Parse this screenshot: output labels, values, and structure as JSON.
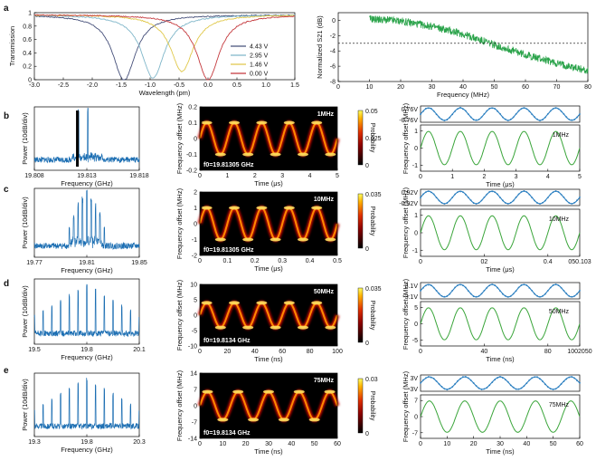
{
  "colors": {
    "transmission": [
      "#46507a",
      "#7fb6c9",
      "#e0c84a",
      "#c4383c"
    ],
    "s21": "#2aa34a",
    "spectrum": "#1d6fb3",
    "drive": "#2b7fc0",
    "freq_offset": "#3aa53a",
    "marker": "#000000"
  },
  "panels": {
    "a": "a",
    "b": "b",
    "c": "c",
    "d": "d",
    "e": "e"
  },
  "chart_data": [
    {
      "id": "a-transmission",
      "type": "line",
      "xlabel": "Wavelength (pm)",
      "ylabel": "Transmission",
      "xlim": [
        -3.0,
        1.5
      ],
      "ylim": [
        0,
        1
      ],
      "xticks": [
        "-3.0",
        "-2.5",
        "-2.0",
        "-1.5",
        "-1.0",
        "-0.5",
        "0.0",
        "0.5",
        "1.0",
        "1.5"
      ],
      "yticks": [
        "0",
        "0.2",
        "0.4",
        "0.6",
        "0.8",
        "1"
      ],
      "legend_position": "lower-right",
      "series": [
        {
          "name": "4.43 V",
          "center": -1.45,
          "width": 0.3,
          "min": 0.02
        },
        {
          "name": "2.95 V",
          "center": -0.95,
          "width": 0.3,
          "min": 0.05
        },
        {
          "name": "1.46 V",
          "center": -0.45,
          "width": 0.3,
          "min": 0.15
        },
        {
          "name": "0.00 V",
          "center": 0.0,
          "width": 0.3,
          "min": 0.03
        }
      ]
    },
    {
      "id": "a-s21",
      "type": "line",
      "xlabel": "Frequency (MHz)",
      "ylabel": "Normalized S21 (dB)",
      "xlim": [
        0,
        80
      ],
      "ylim": [
        -8,
        1
      ],
      "xticks": [
        "0",
        "10",
        "20",
        "30",
        "40",
        "50",
        "60",
        "70",
        "80"
      ],
      "xtick_labels": [
        "0",
        "10",
        "20",
        "30",
        "40",
        "50",
        "60",
        "70",
        "80"
      ],
      "yticks": [
        "0",
        "-2",
        "-4",
        "-6",
        "-8"
      ],
      "reference_line_db": -3,
      "x": [
        10,
        20,
        30,
        40,
        50,
        60,
        70,
        80
      ],
      "values": [
        0.2,
        -0.1,
        -0.8,
        -1.8,
        -3.2,
        -4.5,
        -5.6,
        -6.6
      ]
    },
    {
      "id": "b-spectrum",
      "type": "line",
      "xlabel": "Frequency (GHz)",
      "ylabel": "Power (10dB/div)",
      "xlim": [
        19.808,
        19.818
      ],
      "xticks": [
        "19.808",
        "19.813",
        "19.818"
      ],
      "peaks": [
        19.8122,
        19.8131
      ]
    },
    {
      "id": "b-heatmap",
      "type": "heatmap",
      "xlabel": "Time (μs)",
      "ylabel": "Frequency offset (MHz)",
      "xlim": [
        0,
        5
      ],
      "ylim": [
        -0.2,
        0.2
      ],
      "xticks": [
        "0",
        "1",
        "2",
        "3",
        "4",
        "5"
      ],
      "yticks": [
        "0.2",
        "0.1",
        "0",
        "-0.1",
        "-0.2"
      ],
      "colorbar_label": "Probability",
      "colorbar_ticks": [
        "0.05",
        "0.025",
        "0"
      ],
      "tag": "1MHz",
      "f0": "f0=19.81305 GHz",
      "cycles": 5,
      "amplitude": 0.1
    },
    {
      "id": "b-trace",
      "type": "line",
      "xlabel": "Time (μs)",
      "ylabel": "Frequency offset (MHz)",
      "xlim": [
        0,
        5
      ],
      "xticks": [
        "0",
        "1",
        "2",
        "3",
        "4",
        "5"
      ],
      "yticks": [
        "1",
        "0",
        "-1"
      ],
      "drive_labels": [
        "0.76V",
        "-0.76V"
      ],
      "tag": "1MHz",
      "cycles": 5
    },
    {
      "id": "c-spectrum",
      "type": "line",
      "xlabel": "Frequency (GHz)",
      "ylabel": "Power (10dB/div)",
      "xlim": [
        19.77,
        19.85
      ],
      "xticks": [
        "19.77",
        "19.81",
        "19.85"
      ],
      "peaks": [
        19.81
      ]
    },
    {
      "id": "c-heatmap",
      "type": "heatmap",
      "xlabel": "Time (μs)",
      "ylabel": "Frequency offset (MHz)",
      "xlim": [
        0,
        0.5
      ],
      "ylim": [
        -2,
        2
      ],
      "xticks": [
        "0",
        "0.1",
        "0.2",
        "0.3",
        "0.4",
        "0.5"
      ],
      "yticks": [
        "2",
        "1",
        "0",
        "-1",
        "-2"
      ],
      "colorbar_label": "Probability",
      "colorbar_ticks": [
        "0.035",
        "0"
      ],
      "tag": "10MHz",
      "f0": "f0=19.81305 GHz",
      "cycles": 5,
      "amplitude": 1
    },
    {
      "id": "c-trace",
      "type": "line",
      "xlabel": "Time (μs)",
      "ylabel": "Frequency offset (MHz)",
      "xlim": [
        0,
        0.5
      ],
      "xticks": [
        "0",
        "0.2",
        "0.4",
        "0.5"
      ],
      "xtick_labels": [
        "0",
        "02",
        "0.4",
        "050.103"
      ],
      "yticks": [
        "1",
        "0",
        "-1"
      ],
      "drive_labels": [
        "0.92V",
        "-0.92V"
      ],
      "tag": "10MHz",
      "cycles": 5
    },
    {
      "id": "d-spectrum",
      "type": "line",
      "xlabel": "Frequency (GHz)",
      "ylabel": "Power (10dB/div)",
      "xlim": [
        19.5,
        20.1
      ],
      "xticks": [
        "19.5",
        "19.8",
        "20.1"
      ],
      "peaks": [
        19.8
      ]
    },
    {
      "id": "d-heatmap",
      "type": "heatmap",
      "xlabel": "Time (ns)",
      "ylabel": "Frequency offset (MHz)",
      "xlim": [
        0,
        100
      ],
      "ylim": [
        -10,
        10
      ],
      "xticks": [
        "0",
        "20",
        "40",
        "60",
        "80",
        "100"
      ],
      "yticks": [
        "10",
        "5",
        "0",
        "-5",
        "-10"
      ],
      "colorbar_label": "Probability",
      "colorbar_ticks": [
        "0.035",
        "0"
      ],
      "tag": "50MHz",
      "f0": "f0=19.8134 GHz",
      "cycles": 5,
      "amplitude": 4
    },
    {
      "id": "d-trace",
      "type": "line",
      "xlabel": "Time (ns)",
      "ylabel": "Frequency offset (MHz)",
      "xlim": [
        0,
        100
      ],
      "xticks": [
        "0",
        "40",
        "80",
        "100"
      ],
      "xtick_labels": [
        "0",
        "40",
        "80",
        "1002050"
      ],
      "yticks": [
        "5",
        "0",
        "-5"
      ],
      "drive_labels": [
        "3.1V",
        "-3.1V"
      ],
      "tag": "50MHz",
      "cycles": 5
    },
    {
      "id": "e-spectrum",
      "type": "line",
      "xlabel": "Frequency (GHz)",
      "ylabel": "Power (10dB/div)",
      "xlim": [
        19.3,
        20.3
      ],
      "xticks": [
        "19.3",
        "19.8",
        "20.3"
      ],
      "peaks": [
        19.8
      ]
    },
    {
      "id": "e-heatmap",
      "type": "heatmap",
      "xlabel": "Time (ns)",
      "ylabel": "Frequency offset (MHz)",
      "xlim": [
        0,
        60
      ],
      "ylim": [
        -14,
        14
      ],
      "xticks": [
        "0",
        "10",
        "20",
        "30",
        "40",
        "50",
        "60"
      ],
      "yticks": [
        "14",
        "7",
        "0",
        "-7",
        "-14"
      ],
      "colorbar_label": "Probability",
      "colorbar_ticks": [
        "0.03",
        "0"
      ],
      "tag": "75MHz",
      "f0": "f0=19.8134 GHz",
      "cycles": 4.5,
      "amplitude": 6
    },
    {
      "id": "e-trace",
      "type": "line",
      "xlabel": "Time (ns)",
      "ylabel": "Frequency offset (MHz)",
      "xlim": [
        0,
        60
      ],
      "xticks": [
        "0",
        "10",
        "20",
        "30",
        "40",
        "50",
        "60"
      ],
      "yticks": [
        "7",
        "0",
        "-7"
      ],
      "drive_labels": [
        "3V",
        "-3V"
      ],
      "tag": "75MHz",
      "cycles": 4.5
    }
  ]
}
